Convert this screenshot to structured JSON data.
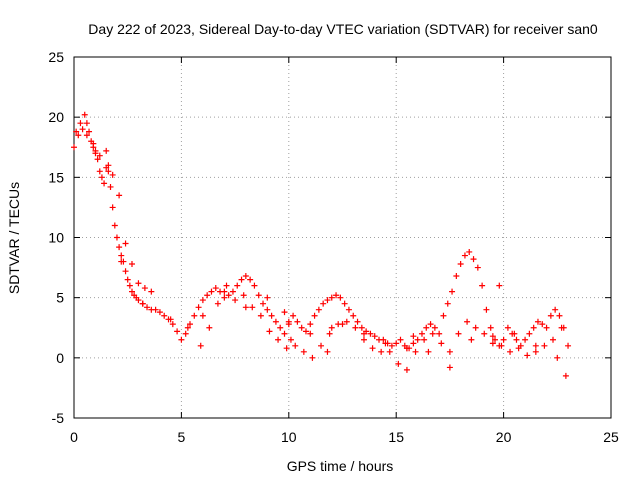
{
  "chart_data": {
    "type": "scatter",
    "title": "Day 222 of 2023, Sidereal Day-to-day VTEC variation (SDTVAR) for receiver san0",
    "xlabel": "GPS time / hours",
    "ylabel": "SDTVAR / TECUs",
    "xlim": [
      0,
      25
    ],
    "ylim": [
      -5,
      25
    ],
    "xticks": [
      "0",
      "5",
      "10",
      "15",
      "20",
      "25"
    ],
    "yticks": [
      "-5",
      "0",
      "5",
      "10",
      "15",
      "20",
      "25"
    ],
    "grid": true,
    "marker": "plus",
    "color": "#ff0000",
    "series": [
      {
        "name": "SDTVAR",
        "x": [
          0.0,
          0.2,
          0.4,
          0.5,
          0.6,
          0.7,
          0.8,
          0.9,
          1.0,
          1.1,
          1.2,
          1.3,
          1.4,
          1.5,
          1.6,
          1.7,
          1.8,
          1.9,
          2.0,
          2.1,
          2.2,
          2.3,
          2.4,
          2.5,
          2.6,
          2.7,
          2.8,
          2.9,
          3.0,
          3.2,
          3.4,
          3.6,
          3.8,
          4.0,
          4.2,
          4.4,
          4.6,
          4.8,
          5.0,
          5.2,
          5.4,
          5.6,
          5.8,
          6.0,
          6.2,
          6.4,
          6.6,
          6.8,
          7.0,
          7.2,
          7.4,
          7.6,
          7.8,
          8.0,
          8.2,
          8.4,
          8.6,
          8.8,
          9.0,
          9.2,
          9.4,
          9.6,
          9.8,
          10.0,
          10.2,
          10.4,
          10.6,
          10.8,
          11.0,
          11.2,
          11.4,
          11.6,
          11.8,
          12.0,
          12.2,
          12.4,
          12.6,
          12.8,
          13.0,
          13.2,
          13.4,
          13.6,
          13.8,
          14.0,
          14.2,
          14.4,
          14.6,
          14.8,
          15.0,
          15.2,
          15.4,
          15.6,
          15.8,
          16.0,
          16.2,
          16.4,
          16.6,
          16.8,
          17.0,
          17.2,
          17.4,
          17.6,
          17.8,
          18.0,
          18.2,
          18.4,
          18.6,
          18.8,
          19.0,
          19.2,
          19.4,
          19.6,
          19.8,
          20.0,
          20.2,
          20.4,
          20.6,
          20.8,
          21.0,
          21.2,
          21.4,
          21.6,
          21.8,
          22.0,
          22.2,
          22.4,
          22.6,
          22.8,
          23.0,
          0.1,
          0.3,
          0.6,
          0.9,
          1.2,
          1.5,
          1.8,
          2.1,
          2.4,
          2.7,
          3.0,
          3.3,
          3.6,
          5.9,
          6.3,
          6.7,
          7.1,
          7.5,
          7.9,
          8.3,
          8.7,
          9.1,
          9.5,
          9.9,
          10.3,
          10.7,
          11.1,
          11.5,
          11.9,
          12.3,
          12.7,
          13.1,
          13.5,
          13.9,
          14.3,
          14.7,
          15.1,
          15.5,
          15.9,
          16.3,
          16.7,
          17.1,
          17.5,
          17.9,
          18.3,
          18.7,
          19.1,
          19.5,
          19.9,
          20.3,
          20.7,
          21.1,
          21.5,
          21.9,
          22.3,
          22.7,
          6.0,
          7.0,
          8.0,
          9.0,
          10.0,
          11.0,
          11.8,
          12.5,
          13.5,
          14.5,
          15.5,
          16.5,
          17.5,
          18.5,
          19.5,
          20.5,
          21.5,
          22.5,
          1.0,
          1.6,
          2.2,
          3.2,
          4.5,
          5.3,
          9.8,
          10.1,
          12.0,
          15.5,
          15.8,
          19.8,
          22.9
        ],
        "y": [
          17.5,
          18.5,
          19.0,
          20.2,
          19.5,
          18.8,
          18.0,
          17.8,
          17.2,
          16.5,
          15.5,
          15.0,
          14.5,
          15.8,
          15.5,
          14.2,
          12.5,
          11.0,
          10.0,
          9.2,
          8.5,
          8.0,
          7.2,
          6.5,
          6.0,
          5.5,
          5.2,
          5.0,
          4.8,
          4.5,
          4.2,
          4.0,
          4.0,
          3.8,
          3.5,
          3.2,
          2.8,
          2.2,
          1.5,
          2.0,
          2.8,
          3.5,
          4.2,
          4.8,
          5.2,
          5.5,
          5.8,
          5.5,
          5.0,
          5.2,
          5.5,
          6.0,
          6.5,
          6.8,
          6.5,
          6.0,
          5.2,
          4.5,
          4.0,
          3.5,
          3.0,
          2.5,
          2.0,
          2.8,
          3.5,
          3.0,
          2.5,
          2.2,
          2.8,
          3.5,
          4.0,
          4.5,
          4.8,
          5.0,
          5.2,
          5.0,
          4.5,
          4.0,
          3.5,
          3.0,
          2.5,
          2.2,
          2.0,
          1.8,
          1.5,
          1.5,
          1.2,
          1.0,
          1.2,
          1.5,
          1.0,
          0.8,
          1.2,
          1.5,
          2.0,
          2.5,
          2.8,
          2.5,
          2.0,
          3.5,
          4.5,
          5.5,
          6.8,
          7.8,
          8.5,
          8.8,
          8.2,
          7.5,
          6.0,
          4.0,
          2.5,
          1.5,
          1.0,
          1.5,
          2.5,
          2.0,
          1.5,
          1.0,
          1.5,
          2.0,
          2.5,
          3.0,
          2.8,
          2.5,
          3.5,
          4.0,
          3.5,
          2.5,
          1.0,
          18.8,
          19.5,
          18.5,
          17.5,
          16.8,
          17.2,
          15.2,
          13.5,
          9.5,
          7.8,
          6.2,
          5.8,
          5.5,
          1.0,
          2.5,
          4.5,
          6.0,
          4.8,
          5.2,
          4.2,
          3.5,
          2.2,
          1.5,
          0.8,
          1.0,
          0.5,
          0.0,
          1.0,
          2.0,
          2.8,
          3.0,
          2.5,
          1.5,
          0.8,
          0.5,
          0.5,
          -0.5,
          -1.0,
          0.5,
          1.5,
          2.0,
          1.2,
          0.5,
          2.0,
          3.0,
          2.5,
          2.0,
          1.8,
          1.0,
          0.5,
          0.8,
          0.2,
          0.5,
          1.0,
          1.5,
          2.5,
          3.5,
          5.5,
          4.2,
          5.0,
          3.0,
          2.0,
          0.5,
          2.8,
          2.0,
          1.2,
          0.8,
          0.5,
          -0.8,
          1.5,
          1.2,
          2.0,
          1.0,
          0.0,
          17.0,
          16.0,
          8.0,
          4.5,
          3.2,
          2.5,
          3.8,
          1.5,
          2.5,
          0.8,
          1.8,
          6.0,
          -1.5
        ]
      }
    ]
  }
}
